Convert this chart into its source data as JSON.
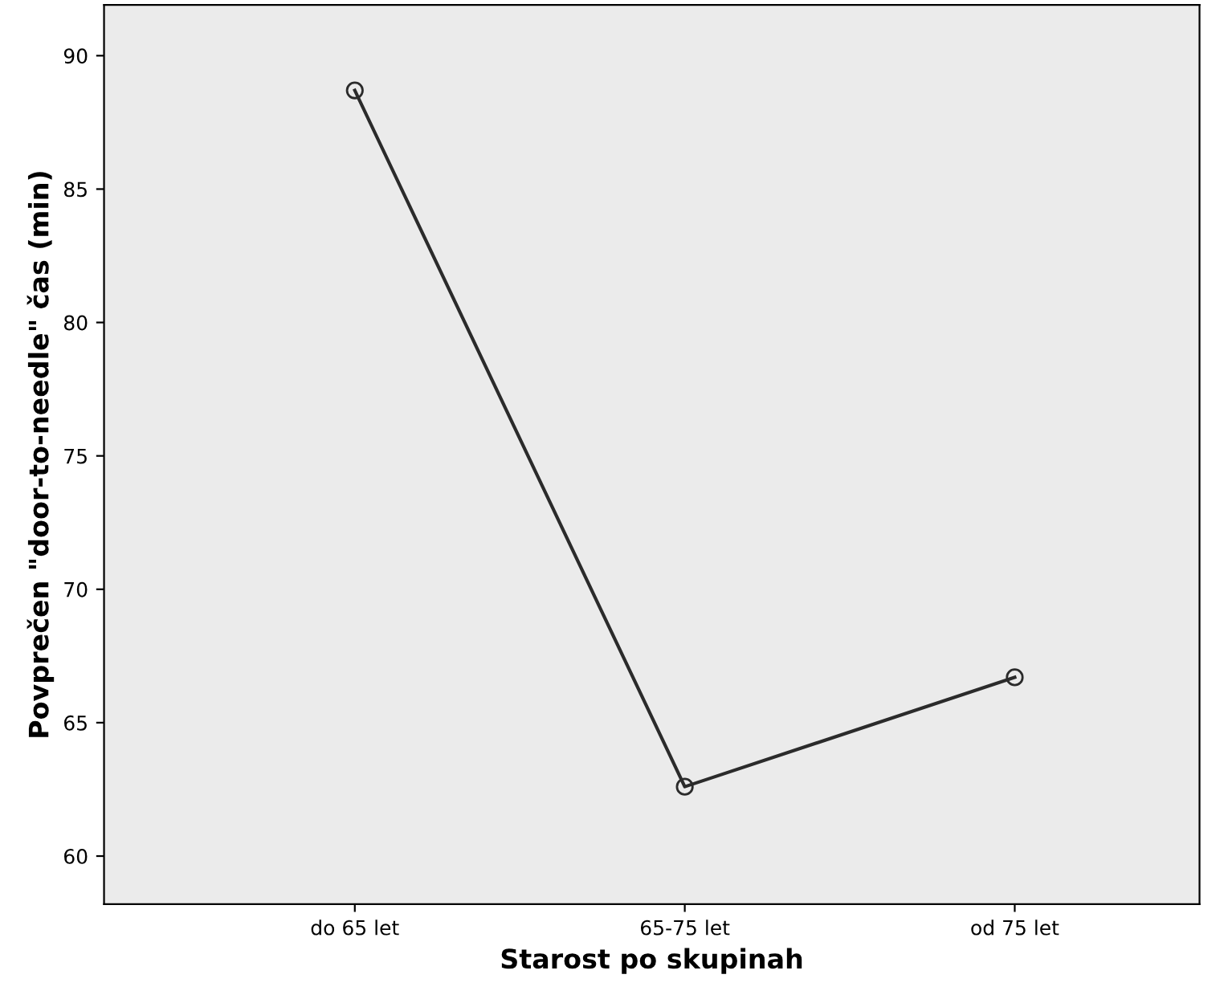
{
  "chart_data": {
    "type": "line",
    "xlabel": "Starost po skupinah",
    "ylabel": "Povprečen \"door-to-needle\" čas (min)",
    "categories": [
      "do 65 let",
      "65-75 let",
      "od 75 let"
    ],
    "series": [
      {
        "color": "#2b2b2b",
        "values": [
          88.7,
          62.6,
          66.7
        ]
      }
    ],
    "ylim": [
      58.2,
      91.9
    ],
    "yticks": [
      60,
      65,
      70,
      75,
      80,
      85,
      90
    ],
    "marker": "circle",
    "line_style": "solid",
    "grid": false
  }
}
